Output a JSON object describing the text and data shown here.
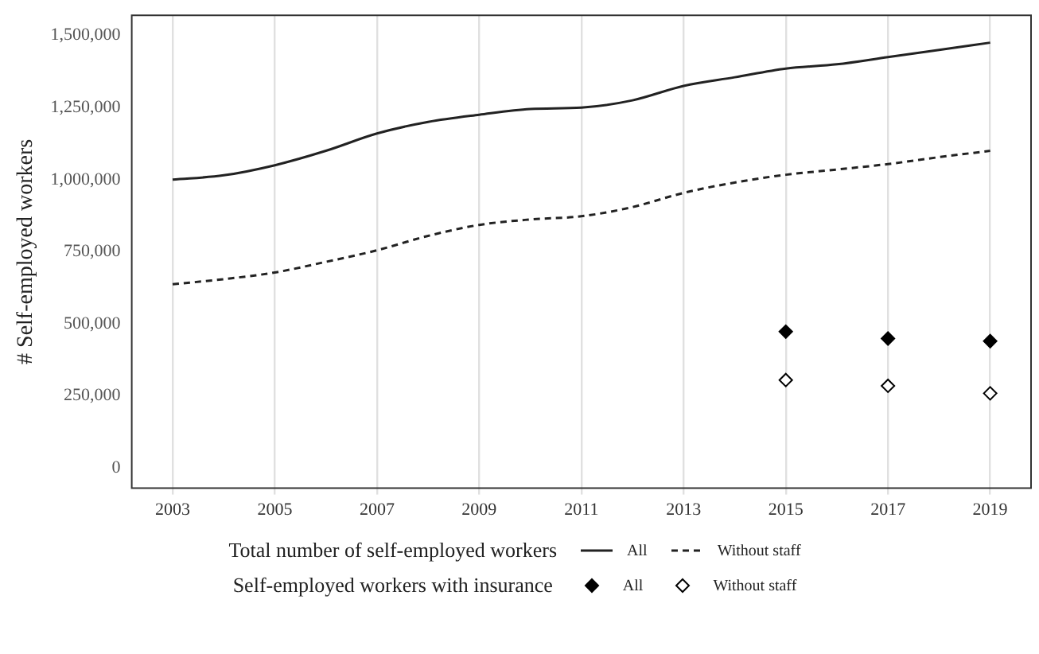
{
  "chart_data": {
    "type": "line",
    "ylabel": "# Self-employed workers",
    "legend_title": "Total number of self-employed workers",
    "annotations": [
      "Self-employed workers with insurance"
    ],
    "x": [
      2003,
      2004,
      2005,
      2006,
      2007,
      2008,
      2009,
      2010,
      2011,
      2012,
      2013,
      2014,
      2015,
      2016,
      2017,
      2018,
      2019
    ],
    "series": [
      {
        "name": "All",
        "color": "#222222",
        "line_style": "solid",
        "marker": "none",
        "values": [
          1000000,
          1015000,
          1050000,
          1100000,
          1160000,
          1200000,
          1225000,
          1245000,
          1250000,
          1275000,
          1325000,
          1355000,
          1385000,
          1400000,
          1425000,
          1450000,
          1475000
        ]
      },
      {
        "name": "Without staff",
        "color": "#222222",
        "line_style": "dashed",
        "marker": "none",
        "values": [
          637000,
          655000,
          678000,
          715000,
          755000,
          805000,
          843000,
          862000,
          873000,
          905000,
          954000,
          990000,
          1017000,
          1035000,
          1054000,
          1078000,
          1100000
        ]
      },
      {
        "name": "All",
        "type": "scatter",
        "color": "#000000",
        "marker": "diamond",
        "x": [
          2015,
          2017,
          2019
        ],
        "values": [
          473000,
          449000,
          440000
        ]
      },
      {
        "name": "Without staff",
        "type": "scatter",
        "color": "#000000",
        "marker": "diamond-open",
        "x": [
          2015,
          2017,
          2019
        ],
        "values": [
          305000,
          285000,
          259000
        ]
      }
    ],
    "xlim": [
      2002.2,
      2019.8
    ],
    "xticks": [
      2003,
      2005,
      2007,
      2009,
      2011,
      2013,
      2015,
      2017,
      2019
    ],
    "ylim": [
      -70000,
      1570000
    ],
    "yticks": [
      {
        "value": 0,
        "label": "0"
      },
      {
        "value": 250000,
        "label": "250,000"
      },
      {
        "value": 500000,
        "label": "500,000"
      },
      {
        "value": 750000,
        "label": "750,000"
      },
      {
        "value": 1000000,
        "label": "1,000,000"
      },
      {
        "value": 1250000,
        "label": "1,250,000"
      },
      {
        "value": 1500000,
        "label": "1,500,000"
      }
    ],
    "grid": "x",
    "legend": "bottom"
  }
}
